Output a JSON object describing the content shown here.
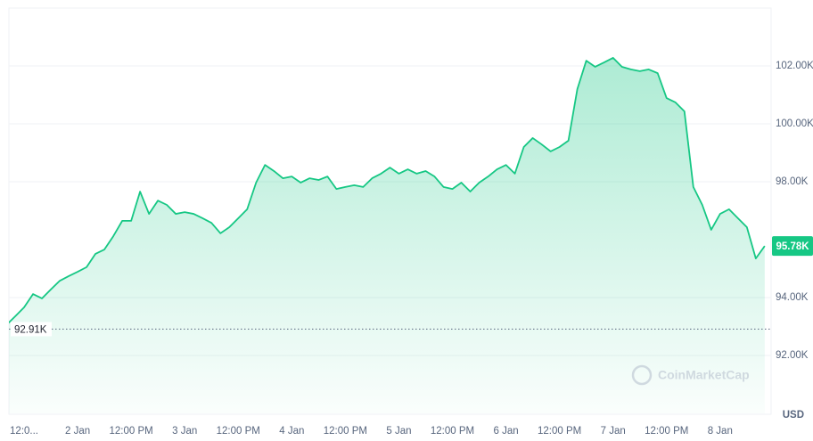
{
  "chart_data": {
    "type": "line",
    "categories": [
      null,
      null,
      "12:0...",
      null,
      null,
      null,
      null,
      null,
      "2 Jan",
      null,
      null,
      null,
      null,
      null,
      "12:00 PM",
      null,
      null,
      null,
      null,
      null,
      "3 Jan",
      null,
      null,
      null,
      null,
      null,
      "12:00 PM",
      null,
      null,
      null,
      null,
      null,
      "4 Jan",
      null,
      null,
      null,
      null,
      null,
      "12:00 PM",
      null,
      null,
      null,
      null,
      null,
      "5 Jan",
      null,
      null,
      null,
      null,
      null,
      "12:00 PM",
      null,
      null,
      null,
      null,
      null,
      "6 Jan",
      null,
      null,
      null,
      null,
      null,
      "12:00 PM",
      null,
      null,
      null,
      null,
      null,
      "7 Jan",
      null,
      null,
      null,
      null,
      null,
      "12:00 PM",
      null,
      null,
      null,
      null,
      null,
      "8 Jan",
      null,
      null,
      null,
      null,
      null
    ],
    "values": [
      93050,
      93350,
      93660,
      94120,
      93970,
      94280,
      94580,
      94740,
      94890,
      95050,
      95510,
      95660,
      96120,
      96650,
      96650,
      97660,
      96890,
      97350,
      97200,
      96890,
      96950,
      96890,
      96740,
      96580,
      96220,
      96430,
      96740,
      97050,
      97970,
      98580,
      98370,
      98120,
      98180,
      97970,
      98120,
      98060,
      98180,
      97750,
      97820,
      97880,
      97820,
      98120,
      98280,
      98490,
      98280,
      98430,
      98280,
      98370,
      98180,
      97820,
      97750,
      97970,
      97660,
      97970,
      98180,
      98430,
      98580,
      98280,
      99200,
      99510,
      99290,
      99050,
      99200,
      99420,
      101200,
      102180,
      101970,
      102120,
      102280,
      101970,
      101880,
      101820,
      101880,
      101750,
      100890,
      100740,
      100430,
      97820,
      97200,
      96340,
      96890,
      97050,
      96740,
      96430,
      95350,
      95780
    ],
    "color": "#16c784",
    "ylim": [
      90000,
      104000
    ],
    "yticks": [
      {
        "value": 92000,
        "label": "92.00K"
      },
      {
        "value": 94000,
        "label": "94.00K"
      },
      {
        "value": 98000,
        "label": "98.00K"
      },
      {
        "value": 100000,
        "label": "100.00K"
      },
      {
        "value": 102000,
        "label": "102.00K"
      }
    ],
    "grid": true,
    "reference_line": {
      "value": 92910,
      "label": "92.91K"
    },
    "current_price": {
      "value": 95780,
      "label": "95.78K"
    },
    "currency": "USD",
    "watermark": "CoinMarketCap"
  }
}
